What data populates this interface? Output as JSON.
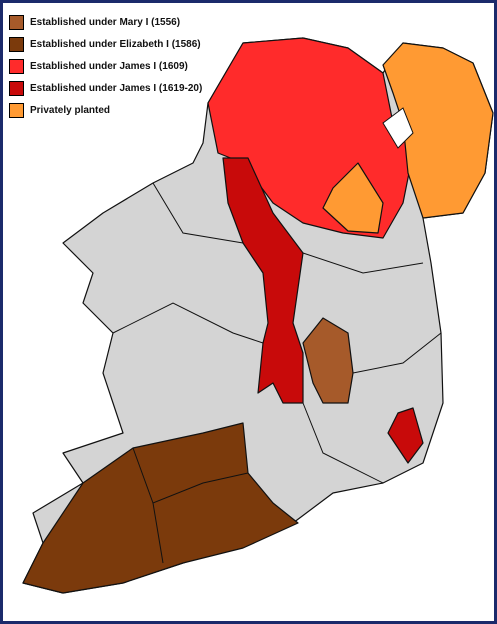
{
  "legend": {
    "items": [
      {
        "label": "Established under Mary I (1556)",
        "color": "#a65a2a"
      },
      {
        "label": "Established under Elizabeth I (1586)",
        "color": "#7b3a0c"
      },
      {
        "label": "Established under James I (1609)",
        "color": "#ff2b2b"
      },
      {
        "label": "Established under James I (1619-20)",
        "color": "#c80a0a"
      },
      {
        "label": "Privately planted",
        "color": "#ff9a33"
      }
    ]
  }
}
